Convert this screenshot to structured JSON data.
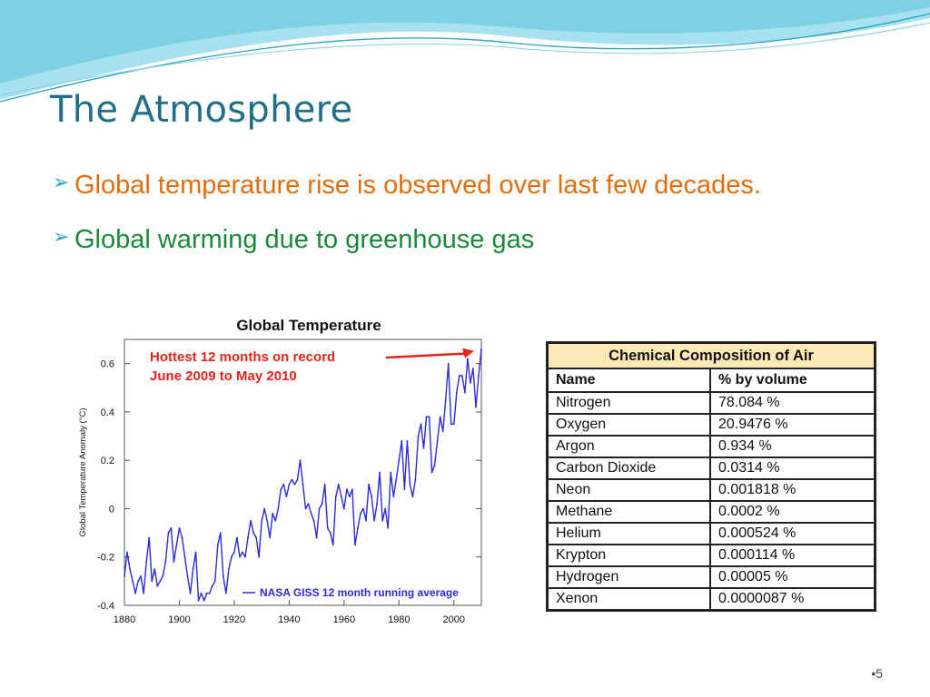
{
  "slide": {
    "title": "The Atmosphere",
    "bullets": [
      {
        "text": "Global temperature rise is observed over last few decades.",
        "color": "#e46c0a"
      },
      {
        "text": "Global warming due to greenhouse gas",
        "color": "#1a8a3a"
      }
    ],
    "page_number": "•5",
    "colors": {
      "title": "#1f6f8a",
      "bullet_arrow": "#2aa8c0",
      "wave": "#7fd0e4"
    }
  },
  "chart_data": {
    "type": "line",
    "title": "Global Temperature",
    "ylabel": "Global Temperature Anomaly (°C)",
    "xlabel": "",
    "xlim": [
      1880,
      2010
    ],
    "ylim": [
      -0.4,
      0.7
    ],
    "x_ticks": [
      1880,
      1900,
      1920,
      1940,
      1960,
      1980,
      2000
    ],
    "y_ticks": [
      -0.4,
      -0.2,
      0,
      0.2,
      0.4,
      0.6
    ],
    "y_tick_labels": [
      "-0.4",
      "-0.2",
      "0",
      "0.2",
      "0.4",
      "0.6"
    ],
    "annotation": {
      "lines": [
        "Hottest 12 months on record",
        "June 2009 to May 2010"
      ],
      "color": "#e8231d",
      "points_to": [
        2010,
        0.66
      ]
    },
    "legend": {
      "label": "NASA GISS 12 month running average",
      "placement": "bottom-right",
      "color": "#2b2bd8"
    },
    "series": [
      {
        "name": "NASA GISS 12 month running average",
        "color": "#2b2bd8",
        "x": [
          1880,
          1881,
          1882,
          1883,
          1884,
          1885,
          1886,
          1887,
          1888,
          1889,
          1890,
          1891,
          1892,
          1893,
          1894,
          1895,
          1896,
          1897,
          1898,
          1899,
          1900,
          1901,
          1902,
          1903,
          1904,
          1905,
          1906,
          1907,
          1908,
          1909,
          1910,
          1911,
          1912,
          1913,
          1914,
          1915,
          1916,
          1917,
          1918,
          1919,
          1920,
          1921,
          1922,
          1923,
          1924,
          1925,
          1926,
          1927,
          1928,
          1929,
          1930,
          1931,
          1932,
          1933,
          1934,
          1935,
          1936,
          1937,
          1938,
          1939,
          1940,
          1941,
          1942,
          1943,
          1944,
          1945,
          1946,
          1947,
          1948,
          1949,
          1950,
          1951,
          1952,
          1953,
          1954,
          1955,
          1956,
          1957,
          1958,
          1959,
          1960,
          1961,
          1962,
          1963,
          1964,
          1965,
          1966,
          1967,
          1968,
          1969,
          1970,
          1971,
          1972,
          1973,
          1974,
          1975,
          1976,
          1977,
          1978,
          1979,
          1980,
          1981,
          1982,
          1983,
          1984,
          1985,
          1986,
          1987,
          1988,
          1989,
          1990,
          1991,
          1992,
          1993,
          1994,
          1995,
          1996,
          1997,
          1998,
          1999,
          2000,
          2001,
          2002,
          2003,
          2004,
          2005,
          2006,
          2007,
          2008,
          2009,
          2010
        ],
        "values": [
          -0.28,
          -0.18,
          -0.25,
          -0.3,
          -0.35,
          -0.3,
          -0.28,
          -0.35,
          -0.22,
          -0.12,
          -0.3,
          -0.25,
          -0.32,
          -0.3,
          -0.28,
          -0.22,
          -0.1,
          -0.08,
          -0.22,
          -0.15,
          -0.08,
          -0.12,
          -0.2,
          -0.28,
          -0.35,
          -0.25,
          -0.18,
          -0.38,
          -0.35,
          -0.38,
          -0.35,
          -0.35,
          -0.32,
          -0.3,
          -0.15,
          -0.1,
          -0.28,
          -0.35,
          -0.25,
          -0.2,
          -0.18,
          -0.12,
          -0.2,
          -0.18,
          -0.2,
          -0.12,
          -0.05,
          -0.1,
          -0.12,
          -0.2,
          -0.05,
          0.0,
          -0.05,
          -0.12,
          -0.02,
          -0.05,
          0.0,
          0.08,
          0.1,
          0.05,
          0.1,
          0.12,
          0.1,
          0.12,
          0.2,
          0.1,
          0.0,
          0.02,
          -0.02,
          -0.05,
          -0.12,
          0.0,
          0.02,
          0.1,
          -0.08,
          -0.1,
          -0.15,
          0.05,
          0.1,
          0.05,
          0.0,
          0.08,
          0.05,
          0.08,
          -0.15,
          -0.08,
          -0.02,
          0.0,
          -0.05,
          0.1,
          0.05,
          -0.05,
          0.02,
          0.15,
          -0.05,
          0.0,
          -0.08,
          0.15,
          0.05,
          0.12,
          0.2,
          0.28,
          0.08,
          0.28,
          0.1,
          0.05,
          0.12,
          0.3,
          0.35,
          0.25,
          0.38,
          0.38,
          0.15,
          0.18,
          0.28,
          0.38,
          0.32,
          0.45,
          0.6,
          0.35,
          0.35,
          0.48,
          0.55,
          0.55,
          0.48,
          0.62,
          0.52,
          0.58,
          0.42,
          0.55,
          0.66
        ]
      }
    ]
  },
  "composition_table": {
    "caption": "Chemical Composition of Air",
    "headers": [
      "Name",
      "% by volume"
    ],
    "rows": [
      [
        "Nitrogen",
        "78.084 %"
      ],
      [
        "Oxygen",
        "20.9476 %"
      ],
      [
        "Argon",
        "0.934 %"
      ],
      [
        "Carbon Dioxide",
        "0.0314 %"
      ],
      [
        "Neon",
        "0.001818 %"
      ],
      [
        "Methane",
        "0.0002 %"
      ],
      [
        "Helium",
        "0.000524 %"
      ],
      [
        "Krypton",
        "0.000114 %"
      ],
      [
        "Hydrogen",
        "0.00005 %"
      ],
      [
        "Xenon",
        "0.0000087 %"
      ]
    ]
  }
}
